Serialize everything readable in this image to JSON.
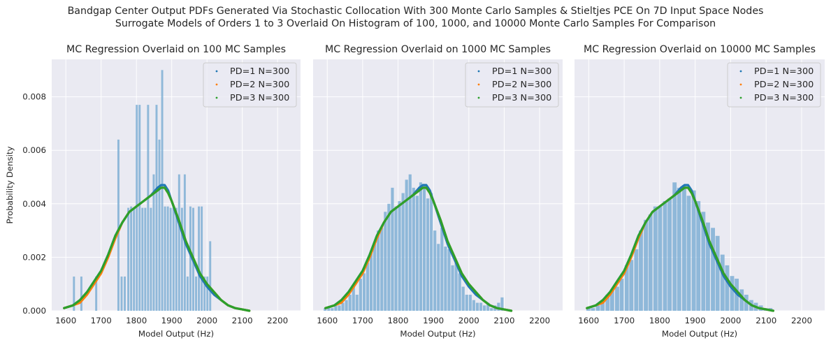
{
  "figure": {
    "suptitle_line1": "Bandgap Center Output PDFs Generated Via Stochastic Collocation With 300 Monte Carlo Samples & Stieltjes PCE On 7D Input Space Nodes",
    "suptitle_line2": "Surrogate Models of Orders 1 to 3 Overlaid On Histogram of 100, 1000, and 10000 Monte Carlo Samples For Comparison",
    "style": {
      "background": "#eaeaf2",
      "grid": "#ffffff"
    }
  },
  "chart_data": [
    {
      "type": "bar",
      "title": "MC Regression Overlaid on 100 MC Samples",
      "xlabel": "Model Output (Hz)",
      "ylabel": "Probability Density",
      "xlim": [
        1560,
        2265
      ],
      "ylim": [
        0,
        0.0094
      ],
      "xticks": [
        1600,
        1700,
        1800,
        1900,
        2000,
        2100,
        2200
      ],
      "yticks": [
        "0.000",
        "0.002",
        "0.004",
        "0.006",
        "0.008"
      ],
      "grid": true,
      "legend_position": "top-right",
      "histogram": {
        "color": "#7fafd5",
        "bin_width": 7.8,
        "x": [
          1624,
          1645,
          1687,
          1750,
          1759,
          1768,
          1778,
          1786,
          1794,
          1802,
          1810,
          1818,
          1826,
          1834,
          1842,
          1850,
          1858,
          1866,
          1874,
          1882,
          1890,
          1898,
          1906,
          1914,
          1922,
          1930,
          1938,
          1946,
          1954,
          1962,
          1970,
          1978,
          1986,
          1994,
          2002,
          2010
        ],
        "values": [
          0.00128,
          0.00128,
          0.00128,
          0.0064,
          0.00128,
          0.00128,
          0.00385,
          0.0039,
          0.00385,
          0.0077,
          0.0077,
          0.00385,
          0.00385,
          0.0077,
          0.00385,
          0.0051,
          0.0077,
          0.0064,
          0.009,
          0.0039,
          0.0039,
          0.00385,
          0.00385,
          0.00385,
          0.0051,
          0.00385,
          0.0051,
          0.00128,
          0.0039,
          0.00385,
          0.00128,
          0.0039,
          0.0039,
          0.00128,
          0.00128,
          0.0026
        ]
      },
      "series": [
        {
          "name": "PD=1 N=300",
          "color": "#1f77b4",
          "x": [
            1595,
            1620,
            1640,
            1660,
            1680,
            1700,
            1720,
            1740,
            1760,
            1780,
            1800,
            1820,
            1840,
            1860,
            1870,
            1880,
            1890,
            1900,
            1920,
            1940,
            1960,
            1980,
            2000,
            2020,
            2040,
            2060,
            2080,
            2100,
            2120
          ],
          "y": [
            0.0001,
            0.0002,
            0.0004,
            0.0007,
            0.0011,
            0.0015,
            0.0021,
            0.0028,
            0.0033,
            0.0037,
            0.0039,
            0.0041,
            0.0043,
            0.0046,
            0.0047,
            0.0047,
            0.0045,
            0.0041,
            0.0033,
            0.0025,
            0.0019,
            0.0013,
            0.0009,
            0.0006,
            0.0004,
            0.0002,
            0.0001,
            5e-05,
            0.0
          ]
        },
        {
          "name": "PD=2 N=300",
          "color": "#ff7f0e",
          "x": [
            1595,
            1620,
            1640,
            1660,
            1680,
            1700,
            1720,
            1740,
            1760,
            1780,
            1800,
            1820,
            1840,
            1860,
            1870,
            1880,
            1890,
            1900,
            1920,
            1940,
            1960,
            1980,
            2000,
            2020,
            2040,
            2060,
            2080,
            2100,
            2120
          ],
          "y": [
            0.0001,
            0.0002,
            0.0003,
            0.0006,
            0.001,
            0.0014,
            0.002,
            0.0027,
            0.0033,
            0.0037,
            0.0039,
            0.0041,
            0.0043,
            0.0045,
            0.0046,
            0.0046,
            0.0044,
            0.0041,
            0.0034,
            0.0026,
            0.002,
            0.0014,
            0.001,
            0.0007,
            0.0004,
            0.0002,
            0.0001,
            5e-05,
            0.0
          ]
        },
        {
          "name": "PD=3 N=300",
          "color": "#2ca02c",
          "x": [
            1595,
            1620,
            1640,
            1660,
            1680,
            1700,
            1720,
            1740,
            1760,
            1780,
            1800,
            1820,
            1840,
            1860,
            1870,
            1880,
            1890,
            1900,
            1920,
            1940,
            1960,
            1980,
            2000,
            2020,
            2040,
            2060,
            2080,
            2100,
            2120
          ],
          "y": [
            0.0001,
            0.0002,
            0.0004,
            0.0007,
            0.0011,
            0.0015,
            0.0021,
            0.0028,
            0.0033,
            0.0037,
            0.0039,
            0.0041,
            0.0043,
            0.0045,
            0.0046,
            0.0046,
            0.0044,
            0.0041,
            0.0034,
            0.0026,
            0.002,
            0.0014,
            0.001,
            0.0007,
            0.0004,
            0.0002,
            0.0001,
            5e-05,
            0.0
          ]
        }
      ]
    },
    {
      "type": "bar",
      "title": "MC Regression Overlaid on 1000 MC Samples",
      "xlabel": "Model Output (Hz)",
      "xlim": [
        1560,
        2265
      ],
      "ylim": [
        0,
        0.0094
      ],
      "xticks": [
        1600,
        1700,
        1800,
        1900,
        2000,
        2100,
        2200
      ],
      "grid": true,
      "legend_position": "top-right",
      "histogram": {
        "color": "#7fafd5",
        "bin_width": 10.2,
        "x": [
          1595,
          1605,
          1615,
          1625,
          1635,
          1645,
          1655,
          1665,
          1675,
          1685,
          1695,
          1705,
          1715,
          1725,
          1735,
          1745,
          1755,
          1765,
          1775,
          1785,
          1795,
          1805,
          1815,
          1825,
          1835,
          1845,
          1855,
          1865,
          1875,
          1885,
          1895,
          1905,
          1915,
          1925,
          1935,
          1945,
          1955,
          1965,
          1975,
          1985,
          1995,
          2005,
          2015,
          2025,
          2035,
          2045,
          2055,
          2065,
          2075,
          2085,
          2095
        ],
        "values": [
          0.0001,
          0.0001,
          0.0001,
          0.0002,
          0.0002,
          0.0003,
          0.0004,
          0.0006,
          0.0009,
          0.0006,
          0.0012,
          0.0014,
          0.0018,
          0.0022,
          0.0025,
          0.003,
          0.0031,
          0.0037,
          0.004,
          0.0046,
          0.0039,
          0.0041,
          0.0044,
          0.0049,
          0.0051,
          0.0046,
          0.0043,
          0.0048,
          0.0047,
          0.0042,
          0.0044,
          0.003,
          0.0025,
          0.0031,
          0.0024,
          0.0023,
          0.0017,
          0.0018,
          0.0014,
          0.0009,
          0.0006,
          0.0006,
          0.0004,
          0.0003,
          0.0003,
          0.0002,
          0.0003,
          0.0001,
          0.0002,
          0.0003,
          0.0005
        ]
      },
      "series": [
        {
          "name": "PD=1 N=300",
          "color": "#1f77b4",
          "x": [
            1595,
            1620,
            1640,
            1660,
            1680,
            1700,
            1720,
            1740,
            1760,
            1780,
            1800,
            1820,
            1840,
            1860,
            1870,
            1880,
            1890,
            1900,
            1920,
            1940,
            1960,
            1980,
            2000,
            2020,
            2040,
            2060,
            2080,
            2100,
            2120
          ],
          "y": [
            0.0001,
            0.0002,
            0.0004,
            0.0007,
            0.0011,
            0.0015,
            0.0021,
            0.0028,
            0.0033,
            0.0037,
            0.0039,
            0.0041,
            0.0043,
            0.0046,
            0.0047,
            0.0047,
            0.0045,
            0.0041,
            0.0033,
            0.0025,
            0.0019,
            0.0013,
            0.0009,
            0.0006,
            0.0004,
            0.0002,
            0.0001,
            5e-05,
            0.0
          ]
        },
        {
          "name": "PD=2 N=300",
          "color": "#ff7f0e",
          "x": [
            1595,
            1620,
            1640,
            1660,
            1680,
            1700,
            1720,
            1740,
            1760,
            1780,
            1800,
            1820,
            1840,
            1860,
            1870,
            1880,
            1890,
            1900,
            1920,
            1940,
            1960,
            1980,
            2000,
            2020,
            2040,
            2060,
            2080,
            2100,
            2120
          ],
          "y": [
            0.0001,
            0.0002,
            0.0003,
            0.0006,
            0.001,
            0.0014,
            0.002,
            0.0027,
            0.0033,
            0.0037,
            0.0039,
            0.0041,
            0.0043,
            0.0045,
            0.0046,
            0.0046,
            0.0044,
            0.0041,
            0.0034,
            0.0026,
            0.002,
            0.0014,
            0.001,
            0.0007,
            0.0004,
            0.0002,
            0.0001,
            5e-05,
            0.0
          ]
        },
        {
          "name": "PD=3 N=300",
          "color": "#2ca02c",
          "x": [
            1595,
            1620,
            1640,
            1660,
            1680,
            1700,
            1720,
            1740,
            1760,
            1780,
            1800,
            1820,
            1840,
            1860,
            1870,
            1880,
            1890,
            1900,
            1920,
            1940,
            1960,
            1980,
            2000,
            2020,
            2040,
            2060,
            2080,
            2100,
            2120
          ],
          "y": [
            0.0001,
            0.0002,
            0.0004,
            0.0007,
            0.0011,
            0.0015,
            0.0021,
            0.0028,
            0.0033,
            0.0037,
            0.0039,
            0.0041,
            0.0043,
            0.0045,
            0.0046,
            0.0046,
            0.0044,
            0.0041,
            0.0034,
            0.0026,
            0.002,
            0.0014,
            0.001,
            0.0007,
            0.0004,
            0.0002,
            0.0001,
            5e-05,
            0.0
          ]
        }
      ]
    },
    {
      "type": "bar",
      "title": "MC Regression Overlaid on 10000 MC Samples",
      "xlabel": "Model Output (Hz)",
      "xlim": [
        1560,
        2265
      ],
      "ylim": [
        0,
        0.0094
      ],
      "xticks": [
        1600,
        1700,
        1800,
        1900,
        2000,
        2100,
        2200
      ],
      "grid": true,
      "legend_position": "top-right",
      "histogram": {
        "color": "#7fafd5",
        "bin_width": 13.5,
        "x": [
          1600,
          1613,
          1627,
          1640,
          1654,
          1667,
          1681,
          1694,
          1708,
          1721,
          1735,
          1748,
          1762,
          1775,
          1789,
          1802,
          1816,
          1829,
          1843,
          1856,
          1870,
          1883,
          1897,
          1910,
          1924,
          1937,
          1951,
          1964,
          1978,
          1991,
          2005,
          2018,
          2032,
          2045,
          2059,
          2072,
          2086,
          2099,
          2113
        ],
        "values": [
          0.0001,
          0.0001,
          0.0002,
          0.0004,
          0.0006,
          0.0008,
          0.0009,
          0.0012,
          0.0017,
          0.0019,
          0.0023,
          0.003,
          0.0034,
          0.0036,
          0.0039,
          0.0039,
          0.0041,
          0.0042,
          0.0048,
          0.0046,
          0.0047,
          0.0043,
          0.0045,
          0.0041,
          0.0037,
          0.0033,
          0.0031,
          0.0028,
          0.0021,
          0.0017,
          0.0013,
          0.0012,
          0.0008,
          0.0006,
          0.0004,
          0.0003,
          0.0002,
          0.0001,
          0.0001
        ]
      },
      "series": [
        {
          "name": "PD=1 N=300",
          "color": "#1f77b4",
          "x": [
            1595,
            1620,
            1640,
            1660,
            1680,
            1700,
            1720,
            1740,
            1760,
            1780,
            1800,
            1820,
            1840,
            1860,
            1870,
            1880,
            1890,
            1900,
            1920,
            1940,
            1960,
            1980,
            2000,
            2020,
            2040,
            2060,
            2080,
            2100,
            2120
          ],
          "y": [
            0.0001,
            0.0002,
            0.0004,
            0.0007,
            0.0011,
            0.0015,
            0.0021,
            0.0028,
            0.0033,
            0.0037,
            0.0039,
            0.0041,
            0.0043,
            0.0046,
            0.0047,
            0.0047,
            0.0045,
            0.0041,
            0.0033,
            0.0025,
            0.0019,
            0.0013,
            0.0009,
            0.0006,
            0.0004,
            0.0002,
            0.0001,
            5e-05,
            0.0
          ]
        },
        {
          "name": "PD=2 N=300",
          "color": "#ff7f0e",
          "x": [
            1595,
            1620,
            1640,
            1660,
            1680,
            1700,
            1720,
            1740,
            1760,
            1780,
            1800,
            1820,
            1840,
            1860,
            1870,
            1880,
            1890,
            1900,
            1920,
            1940,
            1960,
            1980,
            2000,
            2020,
            2040,
            2060,
            2080,
            2100,
            2120
          ],
          "y": [
            0.0001,
            0.0002,
            0.0003,
            0.0006,
            0.001,
            0.0014,
            0.002,
            0.0027,
            0.0033,
            0.0037,
            0.0039,
            0.0041,
            0.0043,
            0.0045,
            0.0046,
            0.0046,
            0.0044,
            0.0041,
            0.0034,
            0.0026,
            0.002,
            0.0014,
            0.001,
            0.0007,
            0.0004,
            0.0002,
            0.0001,
            5e-05,
            0.0
          ]
        },
        {
          "name": "PD=3 N=300",
          "color": "#2ca02c",
          "x": [
            1595,
            1620,
            1640,
            1660,
            1680,
            1700,
            1720,
            1740,
            1760,
            1780,
            1800,
            1820,
            1840,
            1860,
            1870,
            1880,
            1890,
            1900,
            1920,
            1940,
            1960,
            1980,
            2000,
            2020,
            2040,
            2060,
            2080,
            2100,
            2120
          ],
          "y": [
            0.0001,
            0.0002,
            0.0004,
            0.0007,
            0.0011,
            0.0015,
            0.0021,
            0.0028,
            0.0033,
            0.0037,
            0.0039,
            0.0041,
            0.0043,
            0.0045,
            0.0046,
            0.0046,
            0.0044,
            0.0041,
            0.0034,
            0.0026,
            0.002,
            0.0014,
            0.001,
            0.0007,
            0.0004,
            0.0002,
            0.0001,
            5e-05,
            0.0
          ]
        }
      ]
    }
  ]
}
